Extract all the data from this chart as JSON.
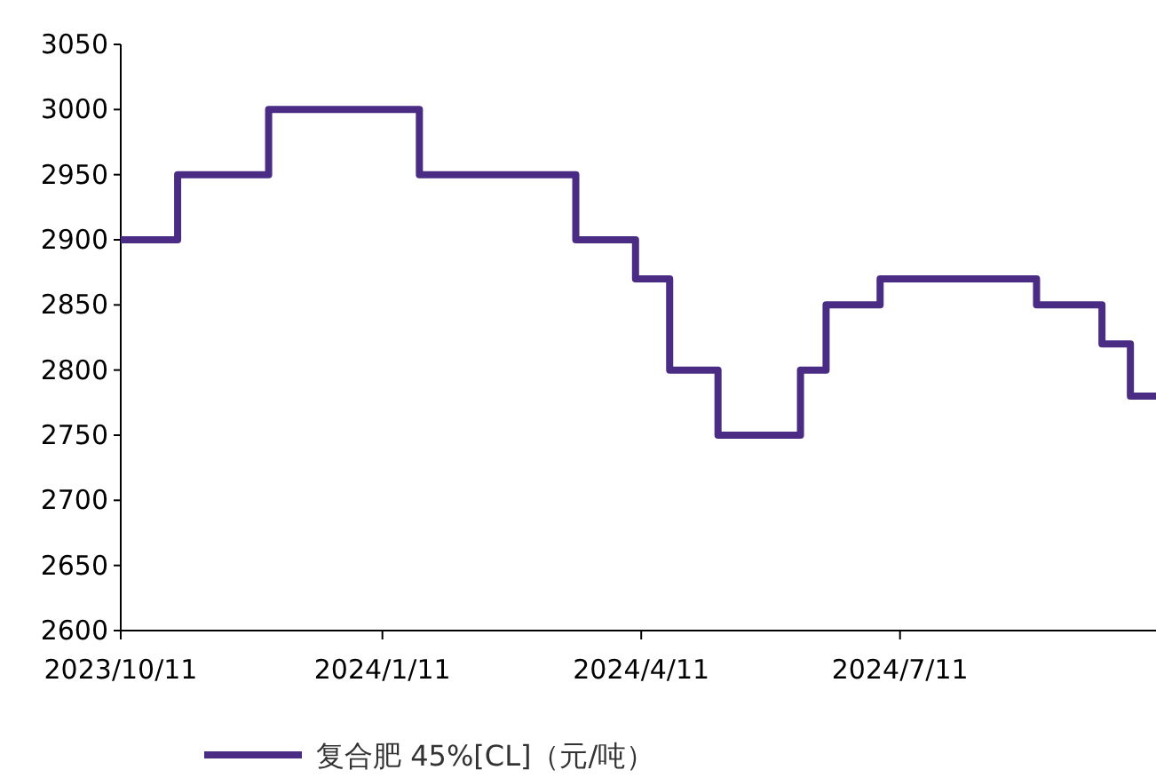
{
  "chart_data": {
    "type": "step",
    "x": [
      "2023-10-11",
      "2023-10-31",
      "2023-12-02",
      "2024-01-24",
      "2024-03-19",
      "2024-04-09",
      "2024-04-21",
      "2024-05-08",
      "2024-06-06",
      "2024-06-15",
      "2024-07-04",
      "2024-08-28",
      "2024-09-20",
      "2024-09-30",
      "2024-10-09"
    ],
    "series": [
      {
        "name": "复合肥 45%[CL]（元/吨）",
        "color": "#4b2c85",
        "values": [
          2900,
          2950,
          3000,
          2950,
          2900,
          2870,
          2800,
          2750,
          2800,
          2850,
          2870,
          2850,
          2820,
          2780,
          2780
        ]
      }
    ],
    "xlim": [
      "2023-10-11",
      "2024-10-09"
    ],
    "xticks": [
      {
        "value": "2023-10-11",
        "label": "2023/10/11"
      },
      {
        "value": "2024-01-11",
        "label": "2024/1/11"
      },
      {
        "value": "2024-04-11",
        "label": "2024/4/11"
      },
      {
        "value": "2024-07-11",
        "label": "2024/7/11"
      }
    ],
    "ylim": [
      2600,
      3050
    ],
    "yticks": [
      2600,
      2650,
      2700,
      2750,
      2800,
      2850,
      2900,
      2950,
      3000,
      3050
    ],
    "grid": false,
    "legend": "bottom",
    "line_style": "solid",
    "marker": "none"
  }
}
